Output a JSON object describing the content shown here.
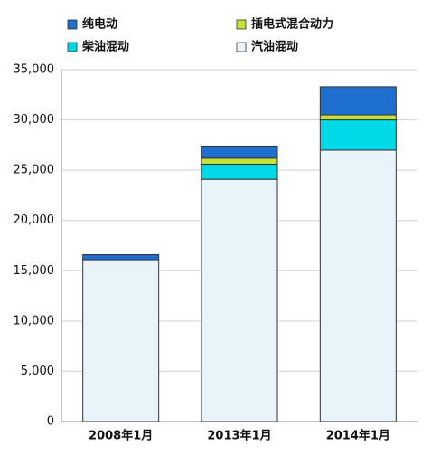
{
  "chart_data": {
    "type": "stacked_bar",
    "categories": [
      "2008年1月",
      "2013年1月",
      "2014年1月"
    ],
    "series": [
      {
        "name": "汽油混动",
        "color": "#e9f4fa",
        "values": [
          16100,
          24100,
          27000
        ]
      },
      {
        "name": "柴油混动",
        "color": "#00d9e6",
        "values": [
          0,
          1500,
          3000
        ]
      },
      {
        "name": "插电式混合动力",
        "color": "#c6e03a",
        "values": [
          0,
          600,
          500
        ]
      },
      {
        "name": "纯电动",
        "color": "#1f6fd0",
        "values": [
          500,
          1200,
          2800
        ]
      }
    ],
    "ylim": [
      0,
      35000
    ],
    "yticks": [
      0,
      {
        "value": 5000,
        "label": "5,000"
      },
      {
        "value": 10000,
        "label": "10,000"
      },
      {
        "value": 15000,
        "label": "15,000"
      },
      {
        "value": 20000,
        "label": "20,000"
      },
      {
        "value": 25000,
        "label": "25,000"
      },
      {
        "value": 30000,
        "label": "30,000"
      },
      {
        "value": 35000,
        "label": "35,000"
      }
    ],
    "grid": true
  }
}
